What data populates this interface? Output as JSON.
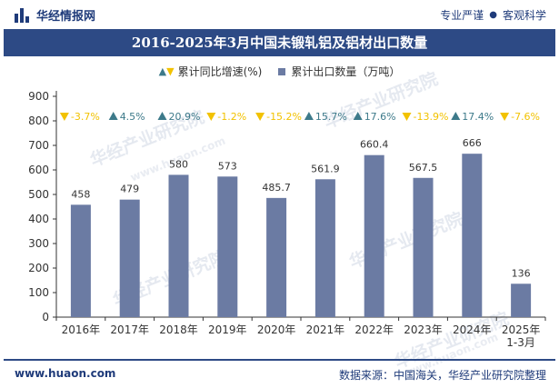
{
  "header": {
    "brand_name": "华经情报网",
    "tagline_left": "专业严谨",
    "tagline_right": "客观科学",
    "logo_icon": "bar-logo-icon"
  },
  "title": "2016-2025年3月中国未锻轧铝及铝材出口数量",
  "legend": {
    "growth_label": "累计同比增速(%)",
    "quantity_label": "累计出口数量（万吨）"
  },
  "watermark": {
    "text": "华经产业研究院",
    "url": "www.huaon.com"
  },
  "footer": {
    "url": "www.huaon.com",
    "source": "数据来源：中国海关，华经产业研究院整理"
  },
  "colors": {
    "bar": "#6b7ba3",
    "up_marker": "#3d7a8a",
    "down_marker": "#f2c200",
    "title_bg": "#2d4a85"
  },
  "chart_data": {
    "type": "bar",
    "categories": [
      "2016年",
      "2017年",
      "2018年",
      "2019年",
      "2020年",
      "2021年",
      "2022年",
      "2023年",
      "2024年",
      "2025年\n1-3月"
    ],
    "series": [
      {
        "name": "累计出口数量（万吨）",
        "values": [
          458,
          479,
          580,
          573,
          485.7,
          561.9,
          660.4,
          567.5,
          666,
          136
        ],
        "value_labels": [
          "458",
          "479",
          "580",
          "573",
          "485.7",
          "561.9",
          "660.4",
          "567.5",
          "666",
          "136"
        ]
      },
      {
        "name": "累计同比增速(%)",
        "values": [
          -3.7,
          4.5,
          20.9,
          -1.2,
          -15.2,
          15.7,
          17.6,
          -13.9,
          17.4,
          -7.6
        ],
        "value_labels": [
          "-3.7%",
          "4.5%",
          "20.9%",
          "-1.2%",
          "-15.2%",
          "15.7%",
          "17.6%",
          "-13.9%",
          "17.4%",
          "-7.6%"
        ]
      }
    ],
    "y_ticks": [
      0,
      100,
      200,
      300,
      400,
      500,
      600,
      700,
      800,
      900
    ],
    "ylim": [
      0,
      900
    ],
    "grid": false,
    "legend_position": "top-center"
  }
}
